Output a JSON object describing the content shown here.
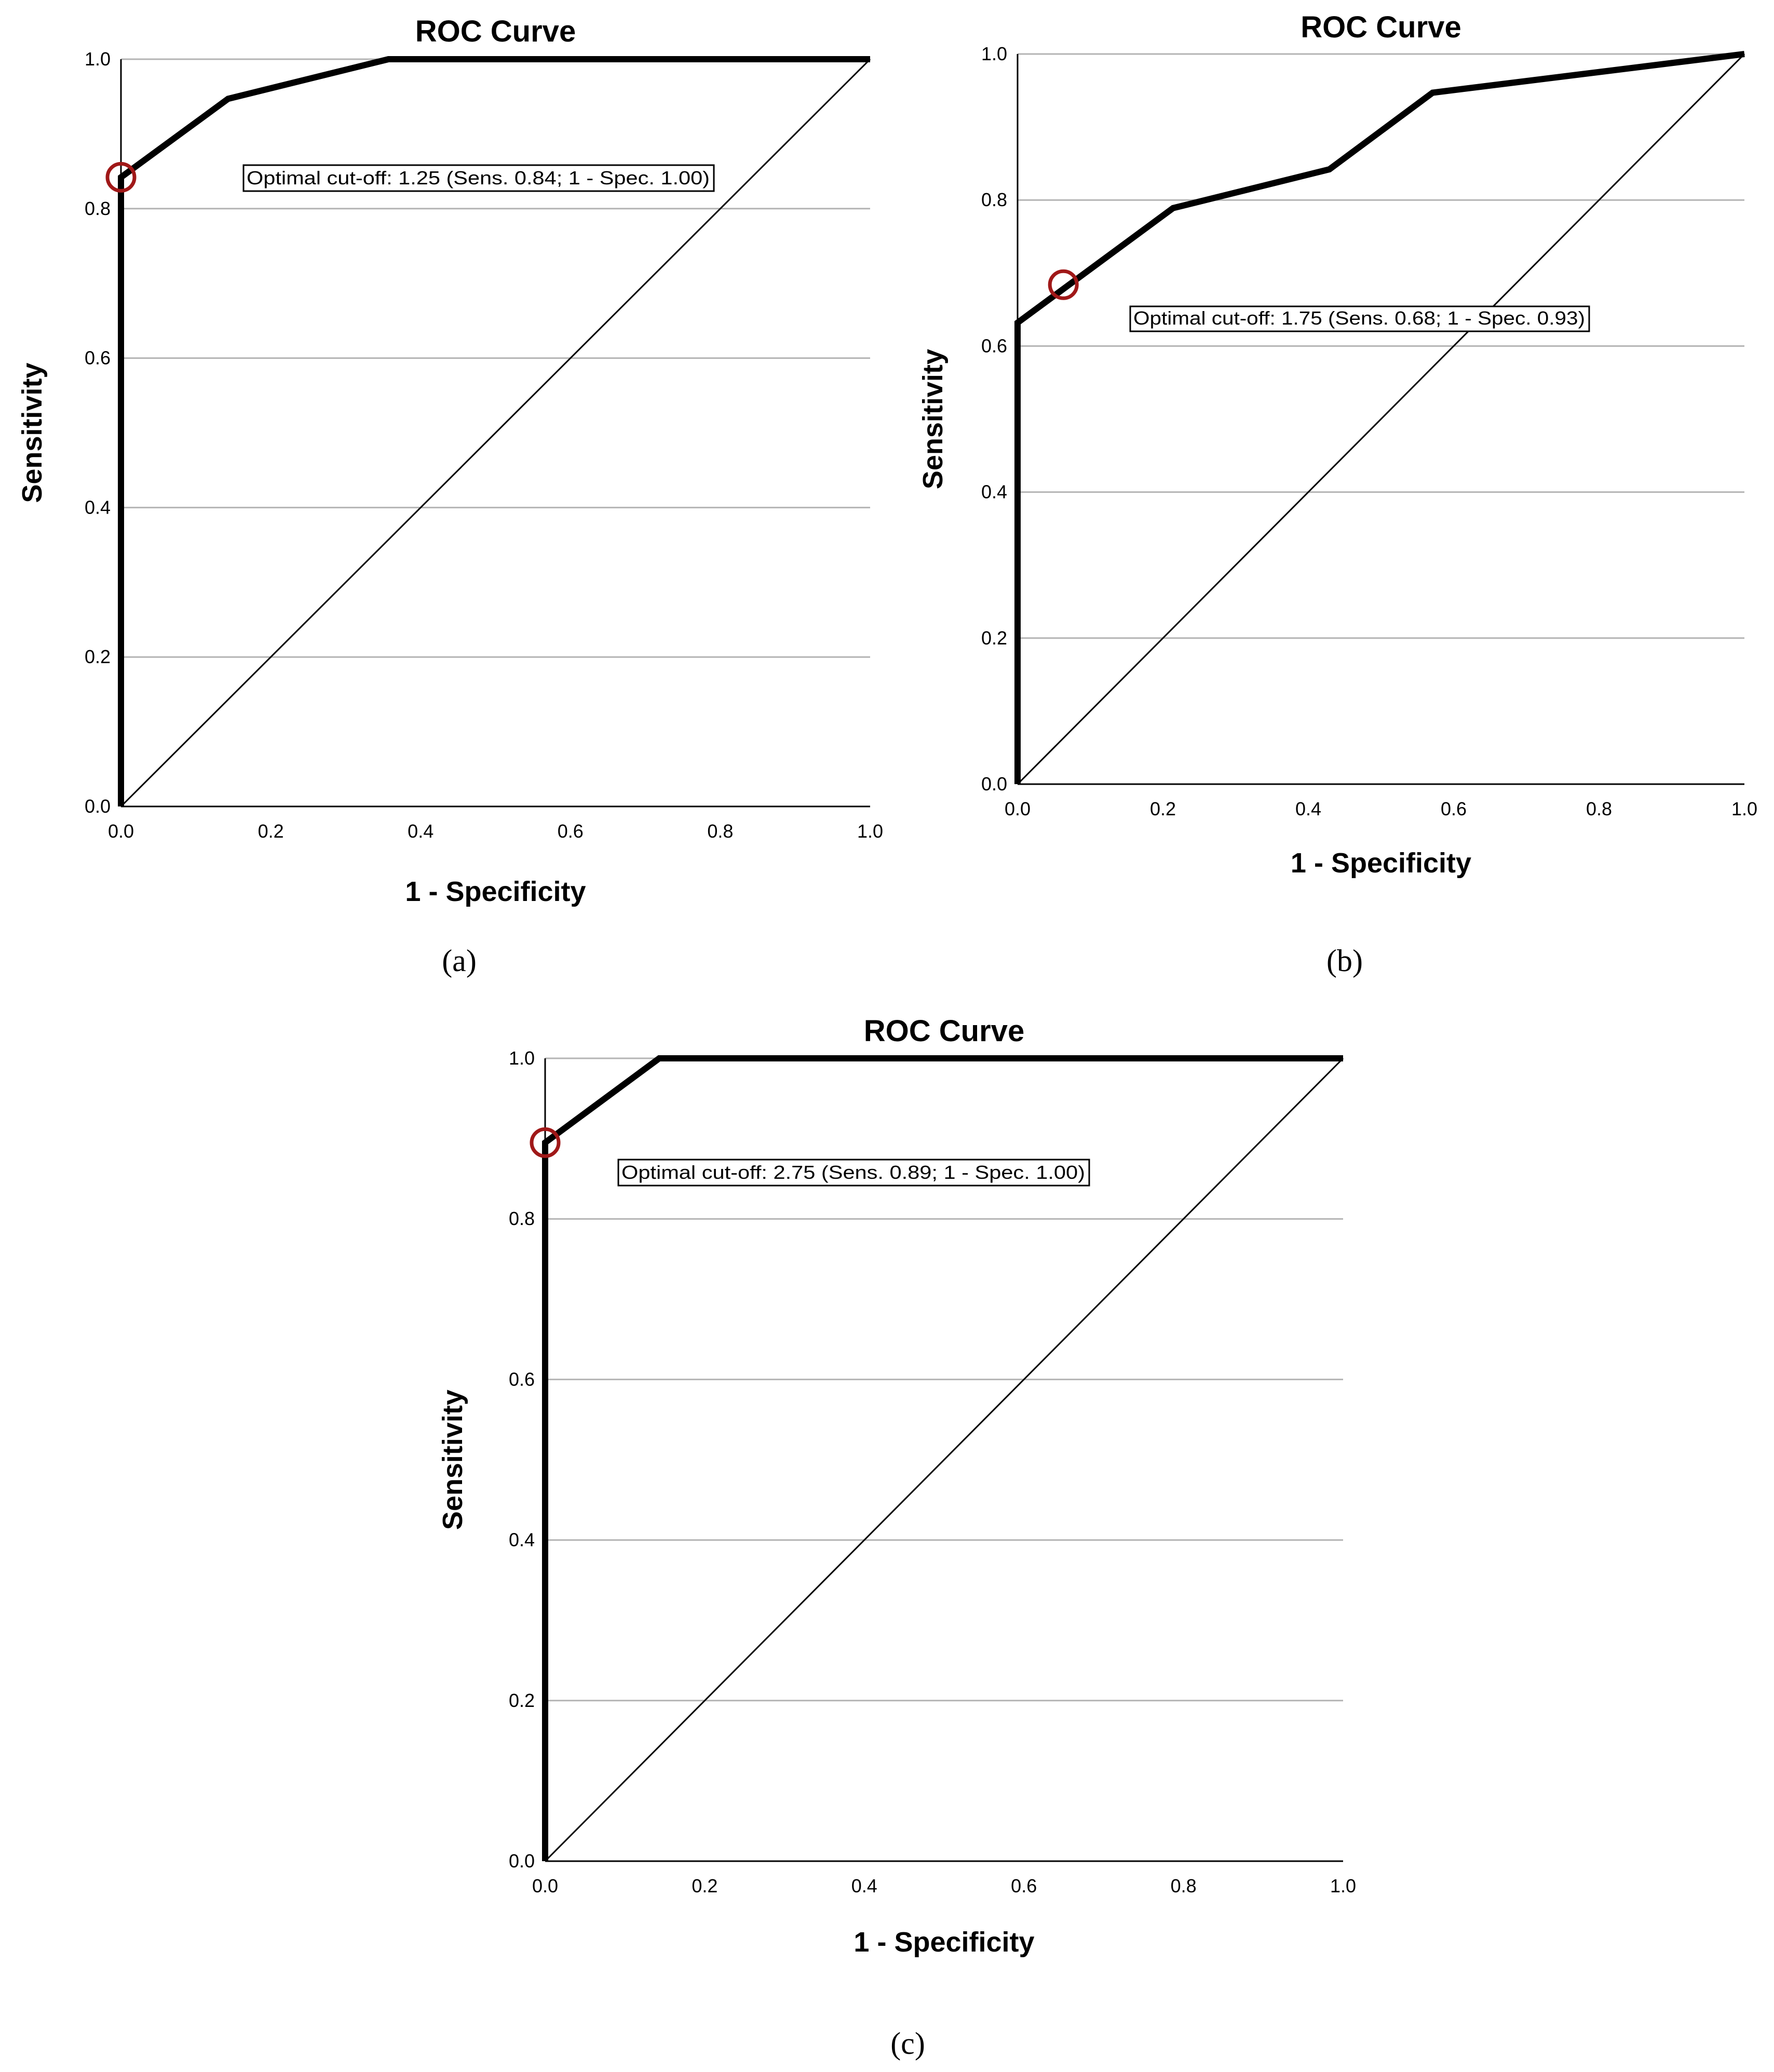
{
  "figure": {
    "panels": [
      "(a)",
      "(b)",
      "(c)"
    ]
  },
  "chart_data": [
    {
      "type": "line",
      "panel": "(a)",
      "title": "ROC Curve",
      "xlabel": "1 - Specificity",
      "ylabel": "Sensitivity",
      "xlim": [
        0,
        1
      ],
      "ylim": [
        0,
        1
      ],
      "xticks": [
        "0.0",
        "0.2",
        "0.4",
        "0.6",
        "0.8",
        "1.0"
      ],
      "yticks": [
        "0.0",
        "0.2",
        "0.4",
        "0.6",
        "0.8",
        "1.0"
      ],
      "grid": "horizontal",
      "series": [
        {
          "role": "roc",
          "x": [
            0.0,
            0.0,
            0.143,
            0.357,
            1.0
          ],
          "y": [
            0.0,
            0.842,
            0.947,
            1.0,
            1.0
          ]
        },
        {
          "role": "reference",
          "x": [
            0.0,
            1.0
          ],
          "y": [
            0.0,
            1.0
          ]
        }
      ],
      "optimal_point": {
        "x": 0.0,
        "y": 0.842,
        "color": "#a01818"
      },
      "annotation": "Optimal cut-off: 1.25 (Sens. 0.84; 1 - Spec. 1.00)"
    },
    {
      "type": "line",
      "panel": "(b)",
      "title": "ROC Curve",
      "xlabel": "1 - Specificity",
      "ylabel": "Sensitivity",
      "xlim": [
        0,
        1
      ],
      "ylim": [
        0,
        1
      ],
      "xticks": [
        "0.0",
        "0.2",
        "0.4",
        "0.6",
        "0.8",
        "1.0"
      ],
      "yticks": [
        "0.0",
        "0.2",
        "0.4",
        "0.6",
        "0.8",
        "1.0"
      ],
      "grid": "horizontal",
      "series": [
        {
          "role": "roc",
          "x": [
            0.0,
            0.0,
            0.214,
            0.429,
            0.571,
            1.0
          ],
          "y": [
            0.0,
            0.632,
            0.789,
            0.842,
            0.947,
            1.0
          ]
        },
        {
          "role": "reference",
          "x": [
            0.0,
            1.0
          ],
          "y": [
            0.0,
            1.0
          ]
        }
      ],
      "optimal_point": {
        "x": 0.063,
        "y": 0.684,
        "color": "#a01818"
      },
      "annotation": "Optimal cut-off: 1.75 (Sens. 0.68; 1 - Spec. 0.93)"
    },
    {
      "type": "line",
      "panel": "(c)",
      "title": "ROC Curve",
      "xlabel": "1 - Specificity",
      "ylabel": "Sensitivity",
      "xlim": [
        0,
        1
      ],
      "ylim": [
        0,
        1
      ],
      "xticks": [
        "0.0",
        "0.2",
        "0.4",
        "0.6",
        "0.8",
        "1.0"
      ],
      "yticks": [
        "0.0",
        "0.2",
        "0.4",
        "0.6",
        "0.8",
        "1.0"
      ],
      "grid": "horizontal",
      "series": [
        {
          "role": "roc",
          "x": [
            0.0,
            0.0,
            0.143,
            1.0
          ],
          "y": [
            0.0,
            0.895,
            1.0,
            1.0
          ]
        },
        {
          "role": "reference",
          "x": [
            0.0,
            1.0
          ],
          "y": [
            0.0,
            1.0
          ]
        }
      ],
      "optimal_point": {
        "x": 0.0,
        "y": 0.895,
        "color": "#a01818"
      },
      "annotation": "Optimal cut-off: 2.75 (Sens. 0.89; 1 - Spec. 1.00)"
    }
  ]
}
